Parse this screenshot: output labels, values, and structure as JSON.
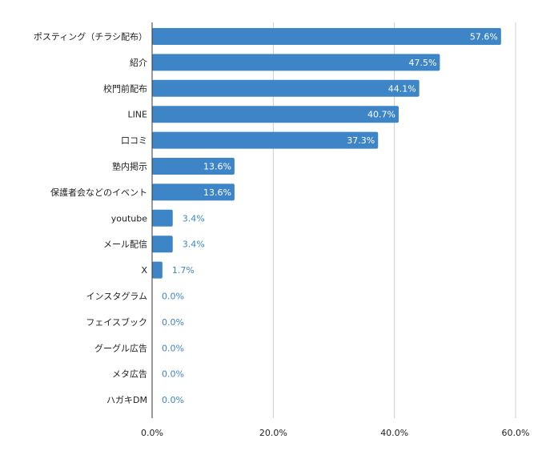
{
  "chart_data": {
    "type": "bar",
    "orientation": "horizontal",
    "categories": [
      "ポスティング（チラシ配布）",
      "紹介",
      "校門前配布",
      "LINE",
      "口コミ",
      "塾内掲示",
      "保護者会などのイベント",
      "youtube",
      "メール配信",
      "X",
      "インスタグラム",
      "フェイスブック",
      "グーグル広告",
      "メタ広告",
      "ハガキDM"
    ],
    "values": [
      57.6,
      47.5,
      44.1,
      40.7,
      37.3,
      13.6,
      13.6,
      3.4,
      3.4,
      1.7,
      0.0,
      0.0,
      0.0,
      0.0,
      0.0
    ],
    "value_labels": [
      "57.6%",
      "47.5%",
      "44.1%",
      "40.7%",
      "37.3%",
      "13.6%",
      "13.6%",
      "3.4%",
      "3.4%",
      "1.7%",
      "0.0%",
      "0.0%",
      "0.0%",
      "0.0%",
      "0.0%"
    ],
    "xlim": [
      0,
      60
    ],
    "x_ticks": [
      0,
      20,
      40,
      60
    ],
    "x_tick_labels": [
      "0.0%",
      "20.0%",
      "40.0%",
      "60.0%"
    ],
    "title": "",
    "xlabel": "",
    "ylabel": "",
    "grid": true,
    "colors": {
      "bar": "#3d85c6",
      "label_inside": "#ffffff",
      "label_outside": "#3d85c6",
      "grid": "#cccccc",
      "axis": "#333333"
    }
  }
}
